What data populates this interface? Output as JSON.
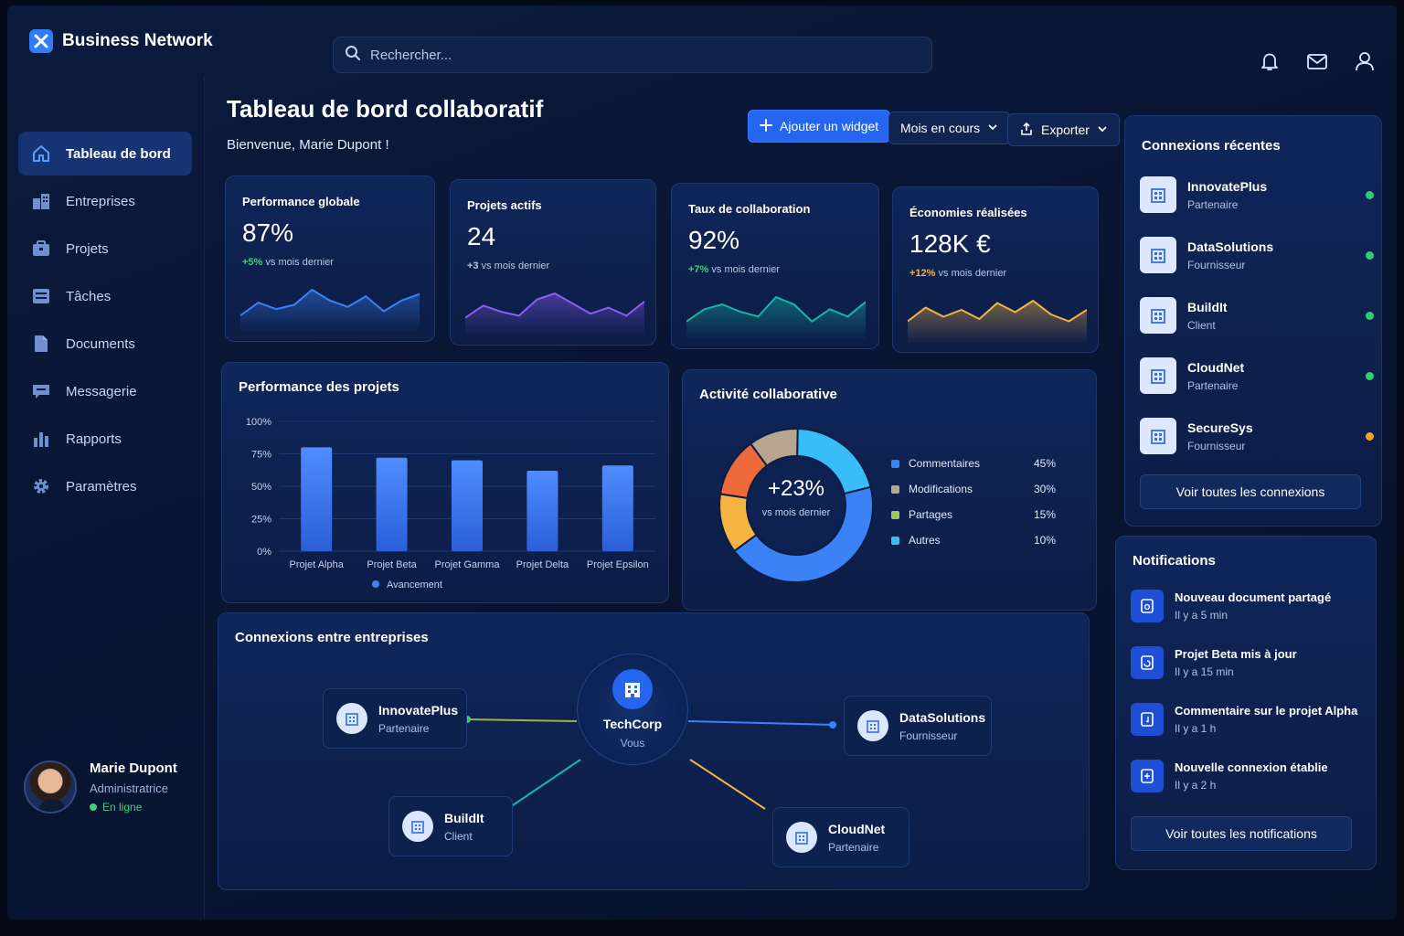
{
  "app": {
    "name": "Business Network"
  },
  "search": {
    "placeholder": "Rechercher..."
  },
  "top_icons": [
    "bell-icon",
    "mail-icon",
    "user-icon"
  ],
  "sidebar": {
    "items": [
      {
        "label": "Tableau de bord",
        "icon": "home-icon",
        "active": true
      },
      {
        "label": "Entreprises",
        "icon": "buildings-icon"
      },
      {
        "label": "Projets",
        "icon": "briefcase-icon"
      },
      {
        "label": "Tâches",
        "icon": "tasks-icon"
      },
      {
        "label": "Documents",
        "icon": "document-icon"
      },
      {
        "label": "Messagerie",
        "icon": "chat-icon"
      },
      {
        "label": "Rapports",
        "icon": "chart-icon"
      },
      {
        "label": "Paramètres",
        "icon": "gear-icon"
      }
    ]
  },
  "user": {
    "name": "Marie Dupont",
    "role": "Administratrice",
    "status": "En ligne"
  },
  "header": {
    "title": "Tableau de bord collaboratif",
    "welcome": "Bienvenue, Marie Dupont !",
    "add_widget": "Ajouter un widget",
    "period": "Mois en cours",
    "export": "Exporter"
  },
  "kpis": [
    {
      "title": "Performance globale",
      "value": "87%",
      "delta": "+5%",
      "delta_text": "vs mois dernier",
      "color": "#3b82f6",
      "delta_color": "#3fd07a"
    },
    {
      "title": "Projets actifs",
      "value": "24",
      "delta": "+3",
      "delta_text": "vs mois dernier",
      "color": "#8b5cf6",
      "delta_color": "#b9c7e6"
    },
    {
      "title": "Taux de collaboration",
      "value": "92%",
      "delta": "+7%",
      "delta_text": "vs mois dernier",
      "color": "#14b8a6",
      "delta_color": "#3fd07a"
    },
    {
      "title": "Économies réalisées",
      "value": "128K €",
      "delta": "+12%",
      "delta_text": "vs mois dernier",
      "color": "#f5b342",
      "delta_color": "#f5b342"
    }
  ],
  "projects_card": {
    "title": "Performance des projets",
    "legend": "Avancement"
  },
  "activity_card": {
    "title": "Activité collaborative",
    "center_value": "+23%",
    "center_text": "vs mois dernier"
  },
  "network_card": {
    "title": "Connexions entre entreprises",
    "center": {
      "name": "TechCorp",
      "role": "Vous"
    },
    "nodes": [
      {
        "name": "InnovatePlus",
        "role": "Partenaire"
      },
      {
        "name": "DataSolutions",
        "role": "Fournisseur"
      },
      {
        "name": "BuildIt",
        "role": "Client"
      },
      {
        "name": "CloudNet",
        "role": "Partenaire"
      }
    ]
  },
  "recent_connections": {
    "title": "Connexions récentes",
    "items": [
      {
        "name": "InnovatePlus",
        "role": "Partenaire",
        "status_color": "#2fcf6f"
      },
      {
        "name": "DataSolutions",
        "role": "Fournisseur",
        "status_color": "#2fcf6f"
      },
      {
        "name": "BuildIt",
        "role": "Client",
        "status_color": "#2fcf6f"
      },
      {
        "name": "CloudNet",
        "role": "Partenaire",
        "status_color": "#2fcf6f"
      },
      {
        "name": "SecureSys",
        "role": "Fournisseur",
        "status_color": "#f5a623"
      }
    ],
    "button": "Voir toutes les connexions"
  },
  "notifications": {
    "title": "Notifications",
    "items": [
      {
        "title": "Nouveau document partagé",
        "time": "Il y a 5 min"
      },
      {
        "title": "Projet Beta mis à jour",
        "time": "Il y a 15 min"
      },
      {
        "title": "Commentaire sur le projet Alpha",
        "time": "Il y a 1 h"
      },
      {
        "title": "Nouvelle connexion établie",
        "time": "Il y a 2 h"
      }
    ],
    "button": "Voir toutes les notifications"
  },
  "chart_data": [
    {
      "type": "bar",
      "title": "Performance des projets",
      "categories": [
        "Projet Alpha",
        "Projet Beta",
        "Projet Gamma",
        "Projet Delta",
        "Projet Epsilon"
      ],
      "series": [
        {
          "name": "Avancement",
          "values": [
            80,
            72,
            70,
            62,
            66
          ]
        }
      ],
      "ylim": [
        0,
        100
      ],
      "yticks": [
        "0%",
        "25%",
        "50%",
        "75%",
        "100%"
      ],
      "grid": true,
      "legend": "bottom"
    },
    {
      "type": "pie",
      "title": "Activité collaborative",
      "labels": [
        "Commentaires",
        "Modifications",
        "Partages",
        "Autres"
      ],
      "values": [
        45,
        30,
        15,
        10
      ],
      "display": [
        "45%",
        "30%",
        "15%",
        "10%"
      ],
      "colors": [
        "#3b82f6",
        "#b8a58f",
        "#a3c85a",
        "#38bdf8"
      ],
      "donut_segments": [
        {
          "value": 20,
          "color": "#38bdf8"
        },
        {
          "value": 42,
          "color": "#3b82f6"
        },
        {
          "value": 12,
          "color": "#f5b342"
        },
        {
          "value": 12,
          "color": "#ef6a3a"
        },
        {
          "value": 10,
          "color": "#b8a58f"
        }
      ],
      "legend": "right"
    },
    {
      "type": "line",
      "series_name": "Performance globale",
      "values": [
        10,
        22,
        16,
        20,
        34,
        24,
        18,
        28,
        14,
        24,
        30
      ]
    },
    {
      "type": "line",
      "series_name": "Projets actifs",
      "values": [
        12,
        24,
        18,
        14,
        30,
        36,
        26,
        16,
        22,
        14,
        28
      ]
    },
    {
      "type": "line",
      "series_name": "Taux de collaboration",
      "values": [
        10,
        20,
        24,
        18,
        14,
        30,
        24,
        10,
        20,
        14,
        26
      ]
    },
    {
      "type": "line",
      "series_name": "Économies réalisées",
      "values": [
        14,
        26,
        18,
        24,
        16,
        30,
        22,
        32,
        20,
        14,
        24
      ]
    }
  ]
}
